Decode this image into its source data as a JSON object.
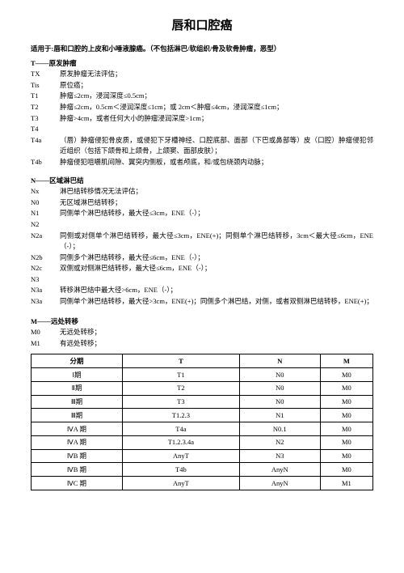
{
  "title": "唇和口腔癌",
  "subtitle": "适用于:唇和口腔的上皮和小唾液腺癌。（不包括淋巴/软组织/骨及软骨肿瘤，恶型）",
  "tSection": {
    "heading": "T——原发肿瘤",
    "rows": [
      {
        "code": "TX",
        "desc": "原发肿瘤无法评估；"
      },
      {
        "code": "Tis",
        "desc": "原位癌；"
      },
      {
        "code": "T1",
        "desc": "肿瘤≤2cm，浸润深度≤0.5cm；"
      },
      {
        "code": "T2",
        "desc": "肿瘤≤2cm，0.5cm＜浸润深度≤1cm；或 2cm＜肿瘤≤4cm，浸润深度≤1cm；"
      },
      {
        "code": "T3",
        "desc": "肿瘤>4cm，或者任何大小的肿瘤浸润深度>1cm；"
      },
      {
        "code": "T4",
        "desc": ""
      },
      {
        "code": "T4a",
        "desc": "（唇）肿瘤侵犯骨皮质，或侵犯下牙槽神经、口腔底部、面部（下巴或鼻部等）皮（口腔）肿瘤侵犯邻近组织（包括下颌骨和上颌骨，上颌窦、面部皮肤）；"
      },
      {
        "code": "T4b",
        "desc": "肿瘤侵犯咀嚼肌间隙、翼突内侧板，或者颅底，和/或包绕颈内动脉；"
      }
    ]
  },
  "nSection": {
    "heading": "N——区域淋巴结",
    "rows": [
      {
        "code": "Nx",
        "desc": "淋巴结转移情况无法评估；"
      },
      {
        "code": "N0",
        "desc": "无区域淋巴结转移；"
      },
      {
        "code": "N1",
        "desc": "同侧单个淋巴结转移，最大径≤3cm，ENE（-）；"
      },
      {
        "code": "N2",
        "desc": ""
      },
      {
        "code": "N2a",
        "desc": "同侧或对侧单个淋巴结转移，最大径≤3cm，ENE(+)；同侧单个淋巴结转移，3cm＜最大径≤6cm，ENE（-）；"
      },
      {
        "code": "N2b",
        "desc": "同侧多个淋巴结转移，最大径≤6cm，ENE（-）；"
      },
      {
        "code": "N2c",
        "desc": "双侧或对侧淋巴结转移，最大径≤6cm，ENE（-）；"
      },
      {
        "code": "N3",
        "desc": ""
      },
      {
        "code": "N3a",
        "desc": "转移淋巴结中最大径>6cm，ENE（-）；"
      },
      {
        "code": "N3a",
        "desc": "同侧单个淋巴结转移，最大径>3cm，ENE(+)；同侧多个淋巴结，对侧，或者双侧淋巴结转移，ENE(+)；"
      }
    ]
  },
  "mSection": {
    "heading": "M——远处转移",
    "rows": [
      {
        "code": "M0",
        "desc": "无远处转移；"
      },
      {
        "code": "M1",
        "desc": "有远处转移；"
      }
    ]
  },
  "table": {
    "headers": [
      "分期",
      "T",
      "N",
      "M"
    ],
    "rows": [
      [
        "Ⅰ期",
        "T1",
        "N0",
        "M0"
      ],
      [
        "Ⅱ期",
        "T2",
        "N0",
        "M0"
      ],
      [
        "Ⅲ期",
        "T3",
        "N0",
        "M0"
      ],
      [
        "Ⅲ期",
        "T1.2.3",
        "N1",
        "M0"
      ],
      [
        "ⅣA 期",
        "T4a",
        "N0.1",
        "M0"
      ],
      [
        "ⅣA 期",
        "T1.2.3.4a",
        "N2",
        "M0"
      ],
      [
        "ⅣB 期",
        "AnyT",
        "N3",
        "M0"
      ],
      [
        "ⅣB 期",
        "T4b",
        "AnyN",
        "M0"
      ],
      [
        "ⅣC 期",
        "AnyT",
        "AnyN",
        "M1"
      ]
    ]
  }
}
